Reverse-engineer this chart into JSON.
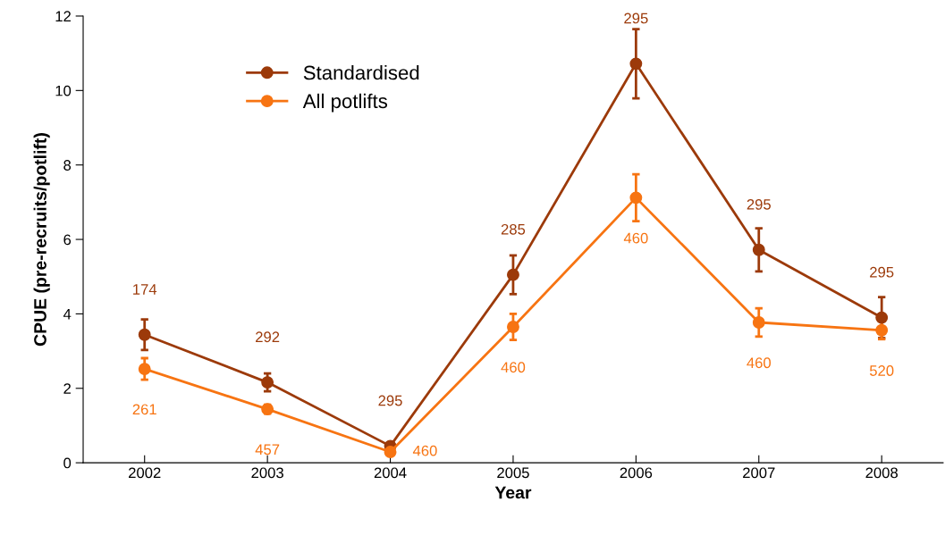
{
  "chart_data": {
    "type": "line",
    "xlabel": "Year",
    "ylabel": "CPUE (pre-recruits/potlift)",
    "categories": [
      "2002",
      "2003",
      "2004",
      "2005",
      "2006",
      "2007",
      "2008"
    ],
    "series": [
      {
        "name": "Standardised",
        "color": "#9c3a0a",
        "values": [
          3.44,
          2.16,
          0.45,
          5.05,
          10.72,
          5.72,
          3.9
        ],
        "errors": [
          0.41,
          0.24,
          null,
          0.52,
          0.93,
          0.58,
          0.55
        ]
      },
      {
        "name": "All potlifts",
        "color": "#f77412",
        "values": [
          2.52,
          1.44,
          0.29,
          3.65,
          7.12,
          3.77,
          3.56
        ],
        "errors": [
          0.29,
          0.12,
          null,
          0.35,
          0.63,
          0.38,
          0.24
        ]
      }
    ],
    "annotations": [
      {
        "text": "174",
        "x": "2002",
        "y": 3.44
      },
      {
        "text": "292",
        "x": "2003",
        "y": 2.16
      },
      {
        "text": "295",
        "x": "2004",
        "y": 0.45
      },
      {
        "text": "285",
        "x": "2005",
        "y": 5.05
      },
      {
        "text": "295",
        "x": "2006",
        "y": 10.72
      },
      {
        "text": "295",
        "x": "2007",
        "y": 5.72
      },
      {
        "text": "295",
        "x": "2008",
        "y": 3.9
      },
      {
        "text": "261",
        "x": "2002",
        "y": 2.52
      },
      {
        "text": "457",
        "x": "2003",
        "y": 1.44
      },
      {
        "text": "460",
        "x": "2004",
        "y": 0.29
      },
      {
        "text": "460",
        "x": "2005",
        "y": 3.65
      },
      {
        "text": "460",
        "x": "2006",
        "y": 7.12
      },
      {
        "text": "460",
        "x": "2007",
        "y": 3.77
      },
      {
        "text": "520",
        "x": "2008",
        "y": 3.56
      }
    ],
    "ylim": [
      0,
      12
    ],
    "yticks": [
      0,
      2,
      4,
      6,
      8,
      10,
      12
    ],
    "grid": false,
    "legend": "top left",
    "marker": "circle",
    "line_style": "solid"
  }
}
